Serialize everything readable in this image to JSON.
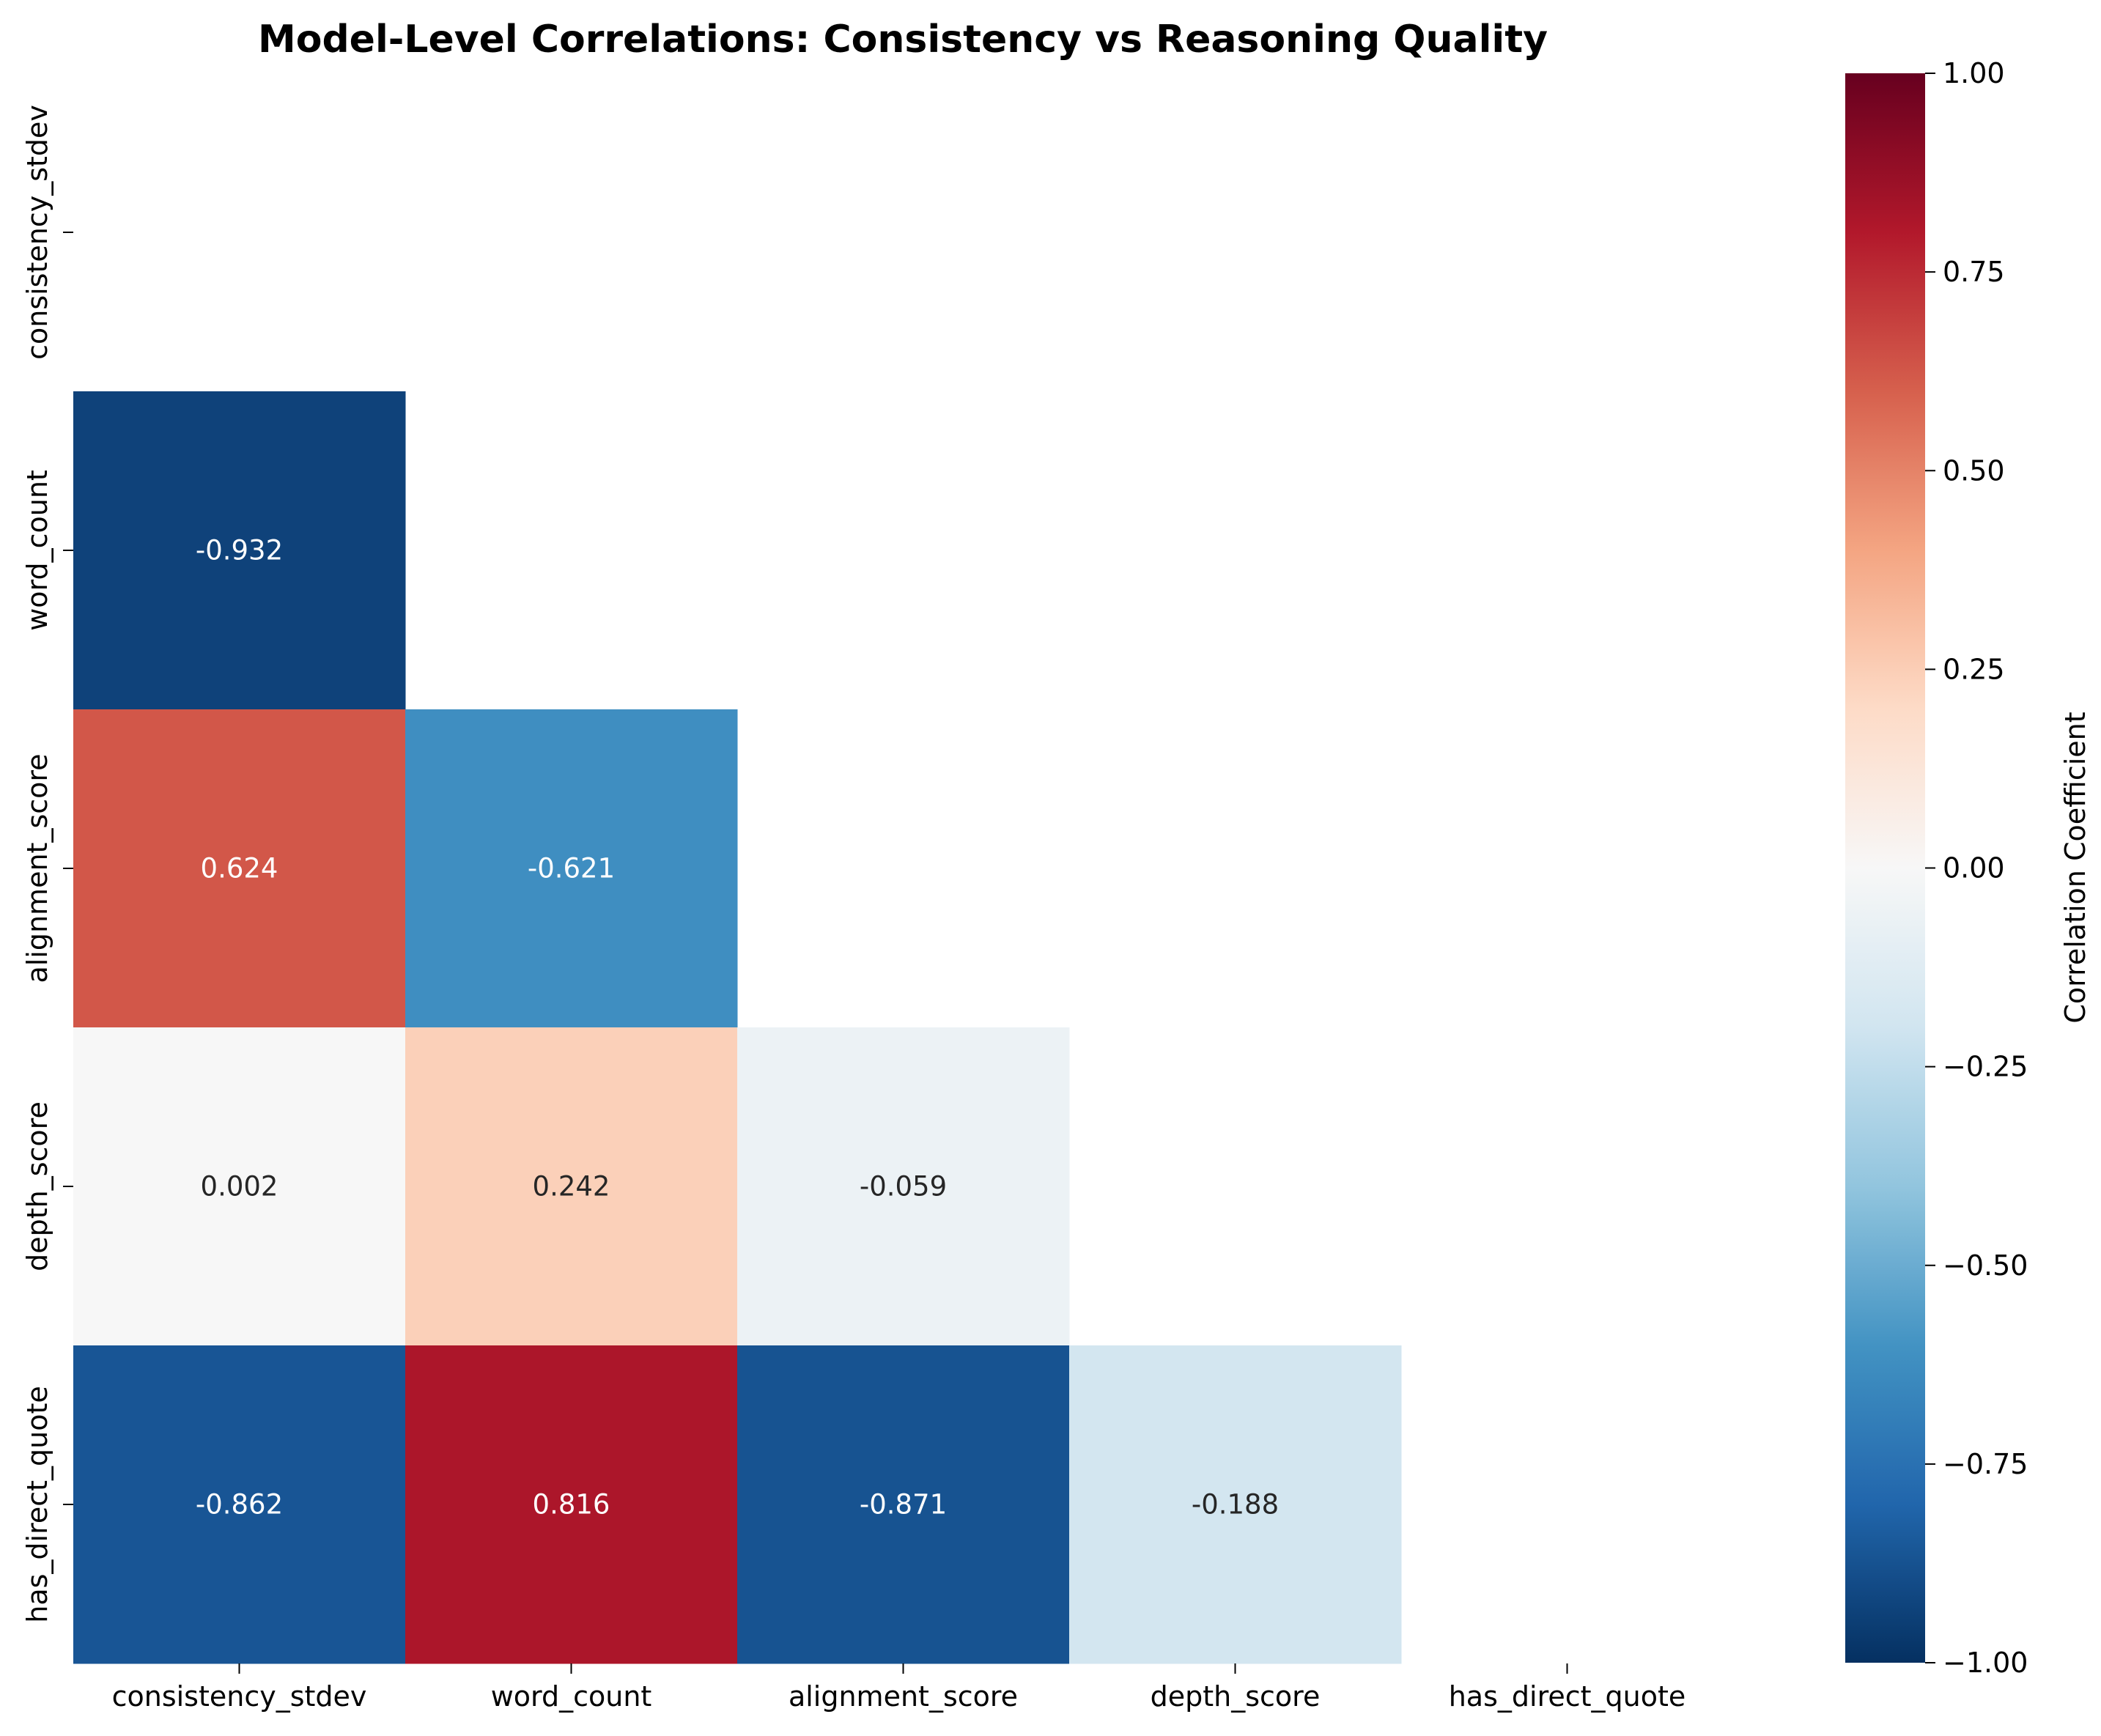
{
  "chart_data": {
    "type": "heatmap",
    "title": "Model-Level Correlations: Consistency vs Reasoning Quality",
    "xlabel": "",
    "ylabel": "",
    "variables": [
      "consistency_stdev",
      "word_count",
      "alignment_score",
      "depth_score",
      "has_direct_quote"
    ],
    "mask": "upper-triangle-and-diagonal",
    "values": [
      [
        null,
        null,
        null,
        null,
        null
      ],
      [
        -0.932,
        null,
        null,
        null,
        null
      ],
      [
        0.624,
        -0.621,
        null,
        null,
        null
      ],
      [
        0.002,
        0.242,
        -0.059,
        null,
        null
      ],
      [
        -0.862,
        0.816,
        -0.871,
        -0.188,
        null
      ]
    ],
    "annotation_labels": [
      [
        null,
        null,
        null,
        null,
        null
      ],
      [
        "-0.932",
        null,
        null,
        null,
        null
      ],
      [
        "0.624",
        "-0.621",
        null,
        null,
        null
      ],
      [
        "0.002",
        "0.242",
        "-0.059",
        null,
        null
      ],
      [
        "-0.862",
        "0.816",
        "-0.871",
        "-0.188",
        null
      ]
    ],
    "colorbar": {
      "label": "Correlation Coefficient",
      "colormap": "RdBu_r",
      "vmin": -1.0,
      "vmax": 1.0,
      "ticks": [
        -1.0,
        -0.75,
        -0.5,
        -0.25,
        0.0,
        0.25,
        0.5,
        0.75,
        1.0
      ],
      "tick_labels": [
        "−1.00",
        "−0.75",
        "−0.50",
        "−0.25",
        "0.00",
        "0.25",
        "0.50",
        "0.75",
        "1.00"
      ]
    },
    "grid": false,
    "legend": "colorbar-right"
  }
}
